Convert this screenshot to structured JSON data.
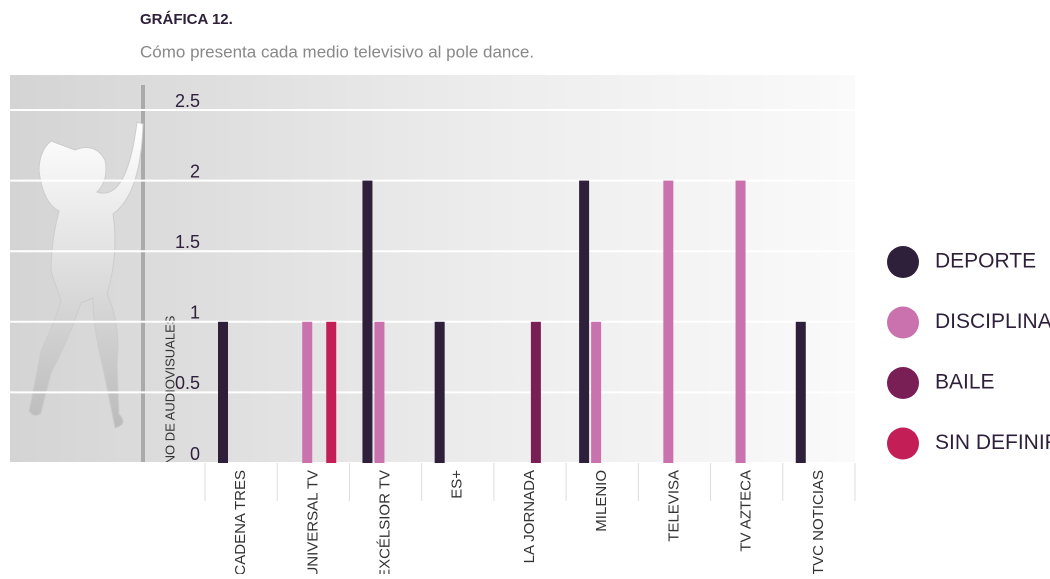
{
  "chart_data": {
    "type": "bar",
    "title": "GRÁFICA 12.",
    "subtitle": "Cómo presenta cada medio televisivo al pole dance.",
    "y_label": "NO DE AUDIOVISUALES",
    "categories": [
      "CADENA TRES",
      "UNIVERSAL TV",
      "EXCÉLSIOR TV",
      "ES+",
      "LA JORNADA",
      "MILENIO",
      "TELEVISA",
      "TV AZTECA",
      "TVC NOTICIAS"
    ],
    "series": [
      {
        "name": "DEPORTE",
        "color": "#2e1f3b",
        "values": [
          1,
          0,
          2,
          1,
          0,
          2,
          0,
          0,
          1
        ]
      },
      {
        "name": "DISCIPLINA",
        "color": "#c972ad",
        "values": [
          0,
          1,
          1,
          0,
          0,
          1,
          2,
          2,
          0
        ]
      },
      {
        "name": "BAILE",
        "color": "#7a1e56",
        "values": [
          0,
          0,
          0,
          0,
          1,
          0,
          0,
          0,
          0
        ]
      },
      {
        "name": "SIN DEFINIR",
        "color": "#c41e57",
        "values": [
          0,
          1,
          0,
          0,
          0,
          0,
          0,
          0,
          0
        ]
      }
    ],
    "ylim": [
      0,
      2.5
    ],
    "yticks": [
      0,
      0.5,
      1,
      1.5,
      2,
      2.5
    ],
    "grid": true,
    "legend": "right"
  }
}
